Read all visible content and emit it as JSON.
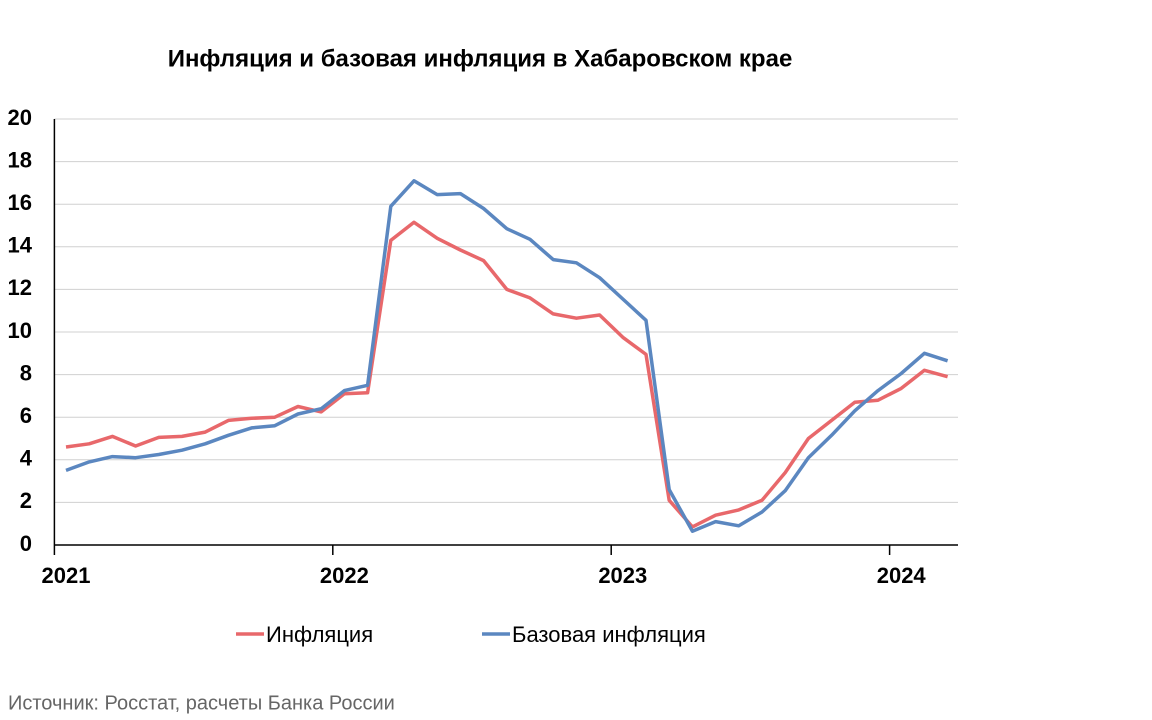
{
  "chart_data": {
    "type": "line",
    "title": "Инфляция и базовая инфляция в Хабаровском крае",
    "source": "Источник: Росстат, расчеты Банка России",
    "categories": [
      "2021",
      null,
      null,
      null,
      null,
      null,
      null,
      null,
      null,
      null,
      null,
      null,
      "2022",
      null,
      null,
      null,
      null,
      null,
      null,
      null,
      null,
      null,
      null,
      null,
      "2023",
      null,
      null,
      null,
      null,
      null,
      null,
      null,
      null,
      null,
      null,
      null,
      "2024",
      null,
      null
    ],
    "series": [
      {
        "name": "Инфляция",
        "color": "#e8686b",
        "values": [
          4.6,
          4.75,
          5.1,
          4.65,
          5.05,
          5.1,
          5.3,
          5.85,
          5.95,
          6.0,
          6.5,
          6.25,
          7.1,
          7.15,
          14.3,
          15.15,
          14.4,
          13.85,
          13.35,
          12.0,
          11.6,
          10.85,
          10.65,
          10.8,
          9.75,
          8.95,
          2.1,
          0.85,
          1.4,
          1.65,
          2.1,
          3.4,
          5.0,
          5.85,
          6.7,
          6.8,
          7.35,
          8.2,
          7.9
        ]
      },
      {
        "name": "Базовая инфляция",
        "color": "#5b87c0",
        "values": [
          3.5,
          3.9,
          4.15,
          4.1,
          4.25,
          4.45,
          4.75,
          5.15,
          5.5,
          5.6,
          6.15,
          6.4,
          7.25,
          7.5,
          15.9,
          17.1,
          16.45,
          16.5,
          15.8,
          14.85,
          14.35,
          13.4,
          13.25,
          12.55,
          11.55,
          10.55,
          2.6,
          0.65,
          1.1,
          0.9,
          1.55,
          2.55,
          4.1,
          5.15,
          6.3,
          7.25,
          8.05,
          9.0,
          8.65
        ]
      }
    ],
    "ylim": [
      0,
      20
    ],
    "yticks": [
      0,
      2,
      4,
      6,
      8,
      10,
      12,
      14,
      16,
      18,
      20
    ],
    "grid": true
  }
}
